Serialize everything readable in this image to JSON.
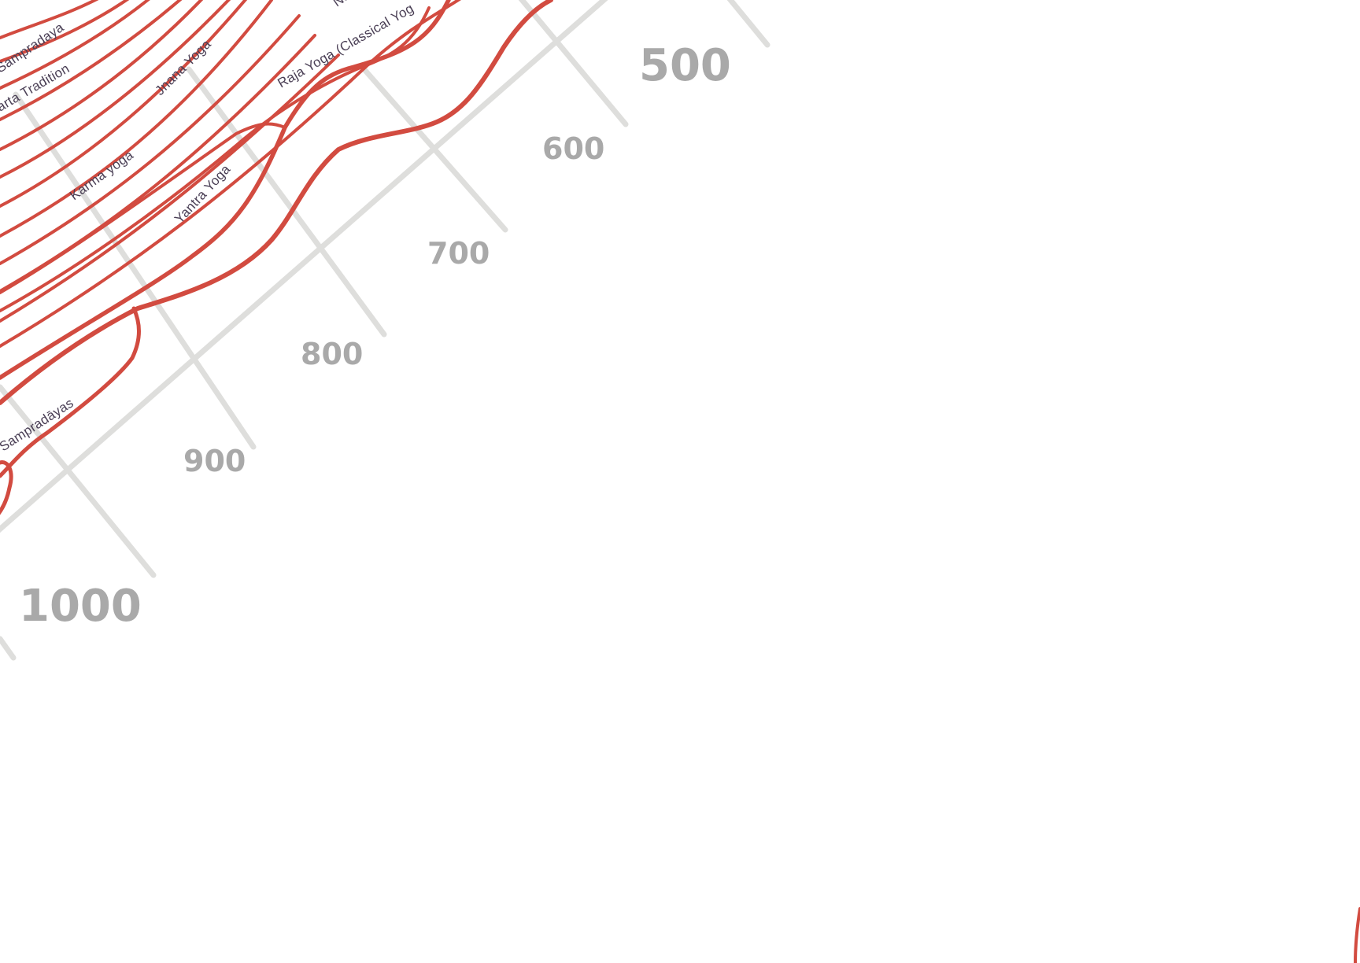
{
  "chart": {
    "type": "timeline-streams",
    "axis_years": [
      {
        "label": "500",
        "major": true
      },
      {
        "label": "600",
        "major": false
      },
      {
        "label": "700",
        "major": false
      },
      {
        "label": "800",
        "major": false
      },
      {
        "label": "900",
        "major": false
      },
      {
        "label": "1000",
        "major": true
      }
    ],
    "stream_labels": [
      "Sampradaya",
      "arta Tradition",
      "Jnana Yoga",
      "Na",
      "Raja Yoga (Classical Yog",
      "Karma yoga",
      "Yantra Yoga",
      "Sampradāyas"
    ],
    "colors": {
      "stream": "#d24b40",
      "grid": "#dededc",
      "year_label": "#a9a9a9",
      "stream_label": "#4a3f55",
      "background": "#ffffff"
    }
  }
}
